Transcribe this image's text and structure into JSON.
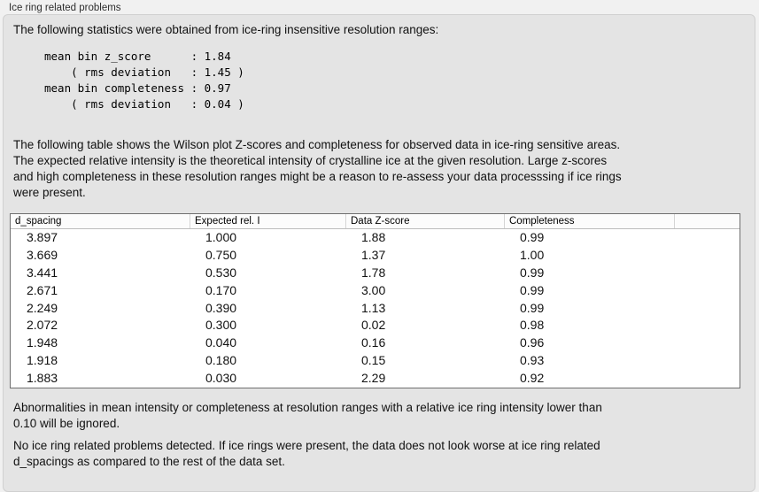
{
  "window": {
    "title": "Ice ring related problems"
  },
  "panel": {
    "intro": "The following statistics were obtained from ice-ring insensitive resolution ranges:",
    "stats_block": "mean bin z_score      : 1.84\n    ( rms deviation   : 1.45 )\nmean bin completeness : 0.97\n    ( rms deviation   : 0.04 )",
    "table_description": "The following table shows the Wilson plot Z-scores and completeness for observed data in ice-ring sensitive areas.\nThe expected relative intensity is the theoretical intensity of crystalline ice at the given resolution. Large z-scores\nand high completeness in these resolution ranges might be a reason to re-assess your data processsing if ice rings\nwere present.",
    "ignore_note": "Abnormalities in mean intensity or completeness at resolution ranges with a relative ice ring intensity lower than\n0.10 will be ignored.",
    "conclusion": "No ice ring related problems detected. If ice rings were present, the data does not look worse at ice ring related\nd_spacings as compared to the rest of the data set."
  },
  "table": {
    "columns": [
      "d_spacing",
      "Expected rel. I",
      "Data Z-score",
      "Completeness"
    ],
    "rows": [
      [
        "3.897",
        "1.000",
        "1.88",
        "0.99"
      ],
      [
        "3.669",
        "0.750",
        "1.37",
        "1.00"
      ],
      [
        "3.441",
        "0.530",
        "1.78",
        "0.99"
      ],
      [
        "2.671",
        "0.170",
        "3.00",
        "0.99"
      ],
      [
        "2.249",
        "0.390",
        "1.13",
        "0.99"
      ],
      [
        "2.072",
        "0.300",
        "0.02",
        "0.98"
      ],
      [
        "1.948",
        "0.040",
        "0.16",
        "0.96"
      ],
      [
        "1.918",
        "0.180",
        "0.15",
        "0.93"
      ],
      [
        "1.883",
        "0.030",
        "2.29",
        "0.92"
      ]
    ]
  },
  "colors": {
    "outer_bg": "#f1f1f1",
    "panel_bg": "#e4e4e4",
    "table_border": "#6e6e6e",
    "header_bg": "#fcfcfc",
    "text": "#111111"
  }
}
